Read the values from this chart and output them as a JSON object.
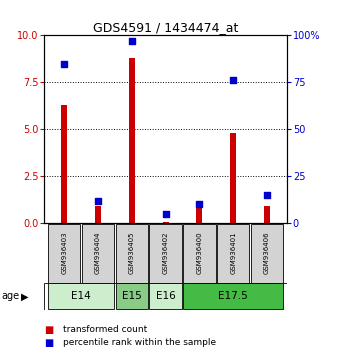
{
  "title": "GDS4591 / 1434474_at",
  "samples": [
    "GSM936403",
    "GSM936404",
    "GSM936405",
    "GSM936402",
    "GSM936400",
    "GSM936401",
    "GSM936406"
  ],
  "transformed_counts": [
    6.3,
    0.9,
    8.8,
    0.05,
    0.9,
    4.8,
    0.9
  ],
  "percentile_ranks": [
    85,
    12,
    97,
    5,
    10,
    76,
    15
  ],
  "age_groups": [
    {
      "label": "E14",
      "samples": [
        0,
        1
      ],
      "light": true
    },
    {
      "label": "E15",
      "samples": [
        2
      ],
      "light": false
    },
    {
      "label": "E16",
      "samples": [
        3
      ],
      "light": true
    },
    {
      "label": "E17.5",
      "samples": [
        4,
        5,
        6
      ],
      "light": false
    }
  ],
  "ylim_left": [
    0,
    10
  ],
  "ylim_right": [
    0,
    100
  ],
  "yticks_left": [
    0,
    2.5,
    5,
    7.5,
    10
  ],
  "yticks_right": [
    0,
    25,
    50,
    75,
    100
  ],
  "bar_color_red": "#cc0000",
  "bar_color_blue": "#0000cc",
  "bar_width": 0.18,
  "bg_color": "#d3d3d3",
  "age_color_light": "#cceecc",
  "age_color_mid": "#88cc88",
  "age_color_dark": "#44bb44",
  "legend_red": "transformed count",
  "legend_blue": "percentile rank within the sample",
  "dotted_lines": [
    2.5,
    5.0,
    7.5
  ]
}
